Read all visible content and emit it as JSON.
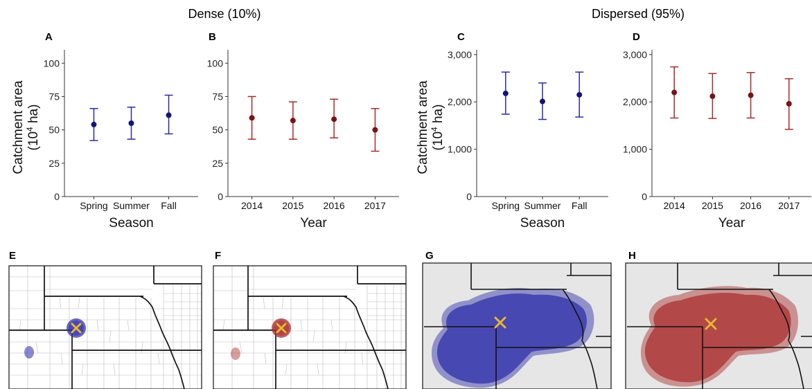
{
  "group_titles": {
    "dense": "Dense (10%)",
    "dispersed": "Dispersed (95%)"
  },
  "colors": {
    "season": "#2a2aa8",
    "season_point": "#141478",
    "year": "#a82a2a",
    "year_point": "#781414",
    "marker": "#e8b830",
    "map_background": "#e6e6e6"
  },
  "map_panels": [
    {
      "label": "E",
      "type": "county map",
      "catchment_color": "#2a2aa8",
      "marker_icon": "x-marker-icon"
    },
    {
      "label": "F",
      "type": "county map",
      "catchment_color": "#a82a2a",
      "marker_icon": "x-marker-icon"
    },
    {
      "label": "G",
      "type": "state map",
      "catchment_color": "#2a2aa8",
      "marker_icon": "x-marker-icon"
    },
    {
      "label": "H",
      "type": "state map",
      "catchment_color": "#a82a2a",
      "marker_icon": "x-marker-icon"
    }
  ],
  "chart_data": [
    {
      "panel": "A",
      "type": "scatter",
      "error_bars": true,
      "xlabel": "Season",
      "ylabel": [
        "Catchment area",
        "(10",
        "4",
        " ha)"
      ],
      "categories": [
        "Spring",
        "Summer",
        "Fall"
      ],
      "values": [
        54,
        55,
        61
      ],
      "lower": [
        42,
        43,
        47
      ],
      "upper": [
        66,
        67,
        76
      ],
      "ylim": [
        0,
        110
      ],
      "yticks": [
        0,
        25,
        50,
        75,
        100
      ],
      "ytick_labels": [
        "0",
        "25",
        "50",
        "75",
        "100"
      ],
      "color_key": "season",
      "grid": false
    },
    {
      "panel": "B",
      "type": "scatter",
      "error_bars": true,
      "xlabel": "Year",
      "ylabel": null,
      "categories": [
        "2014",
        "2015",
        "2016",
        "2017"
      ],
      "values": [
        59,
        57,
        58,
        50
      ],
      "lower": [
        43,
        43,
        44,
        34
      ],
      "upper": [
        75,
        71,
        73,
        66
      ],
      "ylim": [
        0,
        110
      ],
      "yticks": [
        0,
        25,
        50,
        75,
        100
      ],
      "ytick_labels": [
        "0",
        "25",
        "50",
        "75",
        "100"
      ],
      "color_key": "year",
      "grid": false
    },
    {
      "panel": "C",
      "type": "scatter",
      "error_bars": true,
      "xlabel": "Season",
      "ylabel": [
        "Catchment area",
        "(10",
        "4",
        " ha)"
      ],
      "categories": [
        "Spring",
        "Summer",
        "Fall"
      ],
      "values": [
        2180,
        2010,
        2150
      ],
      "lower": [
        1740,
        1630,
        1680
      ],
      "upper": [
        2630,
        2400,
        2630
      ],
      "ylim": [
        0,
        3100
      ],
      "yticks": [
        0,
        1000,
        2000,
        3000
      ],
      "ytick_labels": [
        "0",
        "1,000",
        "2,000",
        "3,000"
      ],
      "color_key": "season",
      "grid": false
    },
    {
      "panel": "D",
      "type": "scatter",
      "error_bars": true,
      "xlabel": "Year",
      "ylabel": null,
      "categories": [
        "2014",
        "2015",
        "2016",
        "2017"
      ],
      "values": [
        2200,
        2120,
        2140,
        1960
      ],
      "lower": [
        1660,
        1650,
        1660,
        1420
      ],
      "upper": [
        2740,
        2600,
        2620,
        2490
      ],
      "ylim": [
        0,
        3100
      ],
      "yticks": [
        0,
        1000,
        2000,
        3000
      ],
      "ytick_labels": [
        "0",
        "1,000",
        "2,000",
        "3,000"
      ],
      "color_key": "year",
      "grid": false
    }
  ]
}
